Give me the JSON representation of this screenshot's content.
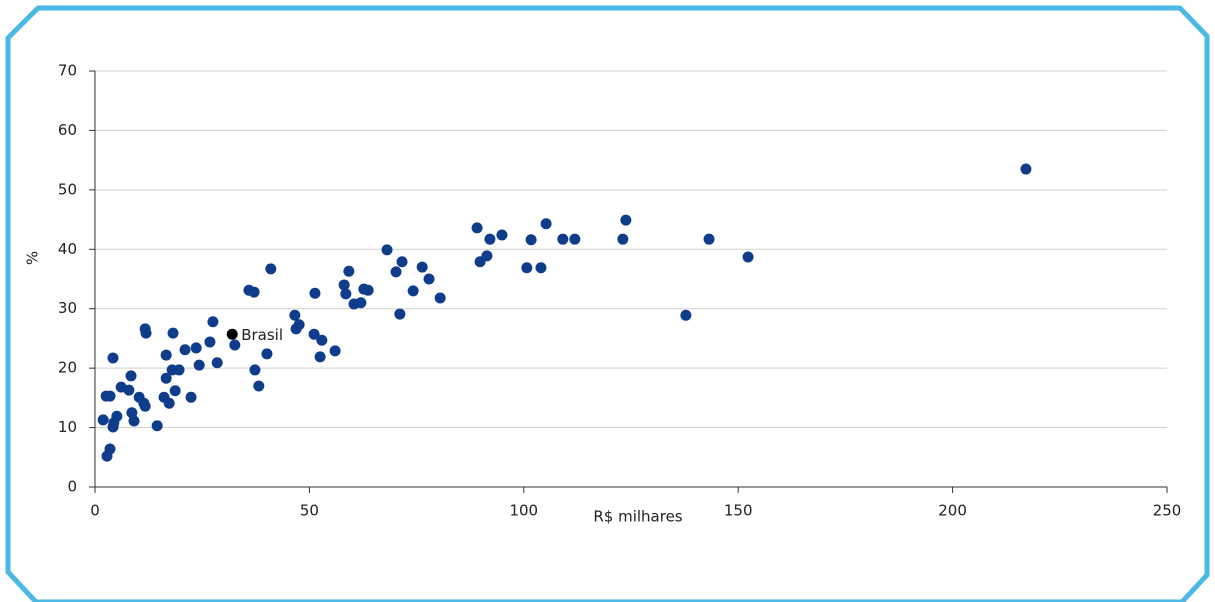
{
  "chart_data": {
    "type": "scatter",
    "xlabel": "R$ milhares",
    "ylabel": "%",
    "xlim": [
      0,
      250
    ],
    "xticks": [
      0,
      50,
      100,
      150,
      200,
      250
    ],
    "ylim": [
      0,
      70
    ],
    "yticks": [
      0,
      10,
      20,
      30,
      40,
      50,
      60,
      70
    ],
    "grid": true,
    "series": [
      {
        "color": "#0f3d8c",
        "x": [
          1.9,
          2.6,
          3.5,
          2.8,
          3.5,
          4.2,
          4.2,
          4.4,
          5.1,
          6.1,
          7.9,
          8.4,
          8.6,
          9.1,
          10.3,
          11.4,
          11.7,
          11.7,
          11.9,
          14.5,
          16.1,
          16.6,
          16.6,
          17.3,
          18.0,
          18.2,
          18.7,
          19.6,
          21.0,
          22.4,
          23.6,
          24.3,
          26.8,
          27.5,
          28.5,
          32.6,
          35.9,
          37.1,
          37.3,
          38.2,
          40.1,
          41.0,
          46.6,
          46.9,
          47.6,
          51.3,
          51.1,
          52.5,
          52.9,
          56.0,
          58.1,
          58.5,
          59.2,
          60.4,
          62.0,
          62.7,
          63.7,
          68.1,
          70.2,
          71.6,
          71.1,
          74.2,
          76.3,
          77.9,
          80.5,
          89.1,
          89.8,
          91.4,
          92.1,
          94.9,
          100.7,
          101.7,
          104.0,
          105.2,
          109.1,
          111.9,
          123.1,
          123.8,
          137.8,
          143.2,
          152.3,
          217.1
        ],
        "y": [
          11.3,
          15.3,
          15.3,
          5.2,
          6.4,
          10.1,
          21.7,
          10.8,
          11.9,
          16.8,
          16.3,
          18.7,
          12.5,
          11.1,
          15.1,
          14.1,
          13.6,
          26.6,
          25.9,
          10.3,
          15.1,
          22.2,
          18.3,
          14.1,
          19.7,
          25.9,
          16.2,
          19.7,
          23.1,
          15.1,
          23.4,
          20.5,
          24.4,
          27.8,
          20.9,
          23.9,
          33.1,
          32.8,
          19.7,
          17.0,
          22.4,
          36.7,
          28.9,
          26.6,
          27.3,
          32.6,
          25.7,
          21.9,
          24.7,
          22.9,
          34.0,
          32.5,
          36.3,
          30.8,
          31.0,
          33.3,
          33.1,
          39.9,
          36.2,
          37.9,
          29.1,
          33.0,
          37.0,
          35.0,
          31.8,
          43.6,
          37.9,
          38.9,
          41.7,
          42.4,
          36.9,
          41.6,
          36.9,
          44.3,
          41.7,
          41.7,
          41.7,
          44.9,
          28.9,
          41.7,
          38.7,
          53.5
        ]
      }
    ],
    "highlight": {
      "label": "Brasil",
      "x": 32.0,
      "y": 25.7,
      "color": "#000000"
    }
  }
}
